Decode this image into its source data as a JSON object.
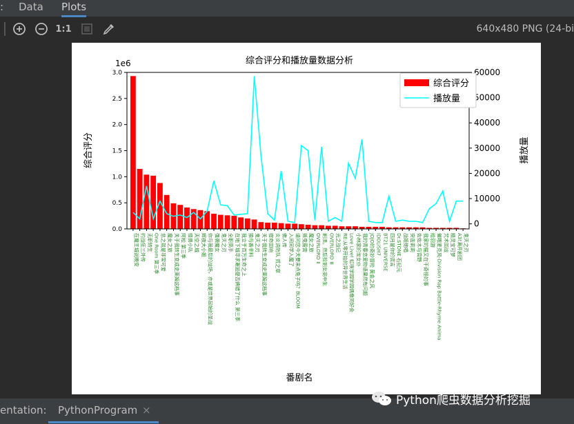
{
  "tabs": [
    {
      "label": "Data"
    },
    {
      "label": "Plots"
    }
  ],
  "left_stub": ":",
  "toolbar": {
    "zoom_in_icon": "plus-circle",
    "zoom_out_icon": "minus-circle",
    "actual_size_label": "1:1",
    "fit_icon": "frame",
    "eyedropper_icon": "eyedropper",
    "image_info": "640x480 PNG (24-bi"
  },
  "bottom": {
    "label": "entation:",
    "tab": "PythonProgram",
    "close_icon": "close-x"
  },
  "watermark": {
    "icon": "wechat-icon",
    "text": "Python爬虫数据分析挖掘"
  },
  "chart_data": {
    "type": "bar",
    "title": "综合评分和播放量数据分析",
    "xlabel": "番剧名",
    "ylabel": "综合评分",
    "y2label": "播放量",
    "y_offset_text": "1e6",
    "ylim": [
      0,
      3.0
    ],
    "y2lim": [
      -2000,
      60000
    ],
    "y_ticks": [
      "0.0",
      "0.5",
      "1.0",
      "1.5",
      "2.0",
      "2.5",
      "3.0"
    ],
    "y2_ticks": [
      "0",
      "10000",
      "20000",
      "30000",
      "40000",
      "50000",
      "60000"
    ],
    "legend_position": "top-right",
    "grid": false,
    "bar_color": "#ff0000",
    "line_color": "#00ffff",
    "categories": [
      "在魔王城说晚安",
      "约战狂三外传",
      "无职转生",
      "One Room 第三季",
      "总之就是非常可爱",
      "魔女之旅",
      "关于我转生变成史莱姆这档事",
      "阿松 第三季",
      "怪兽小队",
      "天空之城",
      "辉夜大小姐",
      "你与我最后的战场，亦或是世界起始的圣战",
      "强袭魔女",
      "鬼灭之刃",
      "全职高手",
      "在地下城寻求邂逅是否搞错了什么 第三季",
      "我立于百万生命之上",
      "狼与香辛料",
      "鬼灭之刃",
      "关于我转生变成史莱姆这档事",
      "宿命回响",
      "炎炎消防队 贰之章",
      "佛人传",
      "入间同学入魔了",
      "请问您今天要来点兔子吗？BLOOM",
      "摇曳露营",
      "魔女之旅",
      "OVERLORD Ⅱ",
      "剃须。然后捡到女高中生",
      "OVERLORD Ⅲ",
      "光之战记",
      "RE:从零开始的异世界生活",
      "Love Live! 虹咲学园学园偶像同好会",
      "小林家的龙女仆",
      "我的青春恋爱物语果然有问题",
      "JOJO的奇妙冒险 黄金之风",
      "IDOLiSH7",
      "BT21 UNIVERSE",
      "四月是你的谎言",
      "Dr.STONE 石纪元",
      "战姬绝唱",
      "突击莉莉",
      "佐佐木与宫野",
      "我家的猫又在干奇怪的事",
      "绘羽游",
      "催眠麦克风-Division Rap Battle-Rhyme Anima",
      "咒术回战",
      "精灵宝可梦",
      "A3!满开剧团",
      "鬼灭之刃"
    ],
    "bar_values": [
      2.93,
      1.15,
      1.04,
      1.02,
      0.88,
      0.65,
      0.49,
      0.46,
      0.41,
      0.38,
      0.36,
      0.34,
      0.29,
      0.27,
      0.26,
      0.25,
      0.22,
      0.2,
      0.18,
      0.13,
      0.12,
      0.12,
      0.11,
      0.1,
      0.1,
      0.09,
      0.08,
      0.07,
      0.07,
      0.06,
      0.06,
      0.05,
      0.05,
      0.05,
      0.04,
      0.04,
      0.04,
      0.04,
      0.03,
      0.03,
      0.03,
      0.03,
      0.03,
      0.03,
      0.02,
      0.02,
      0.02,
      0.02,
      0.02,
      0.01
    ],
    "line_values": [
      4500,
      2000,
      15000,
      2000,
      9000,
      4000,
      3000,
      3500,
      2500,
      4500,
      2000,
      5000,
      17000,
      7500,
      7200,
      3500,
      3800,
      4000,
      58500,
      27000,
      4000,
      1500,
      21000,
      1000,
      500,
      31000,
      29000,
      1500,
      30500,
      1000,
      2500,
      1000,
      24000,
      18000,
      33500,
      1000,
      500,
      500,
      11000,
      1000,
      1500,
      1000,
      1000,
      500,
      6000,
      8000,
      13000,
      1000,
      9000,
      9000
    ]
  }
}
